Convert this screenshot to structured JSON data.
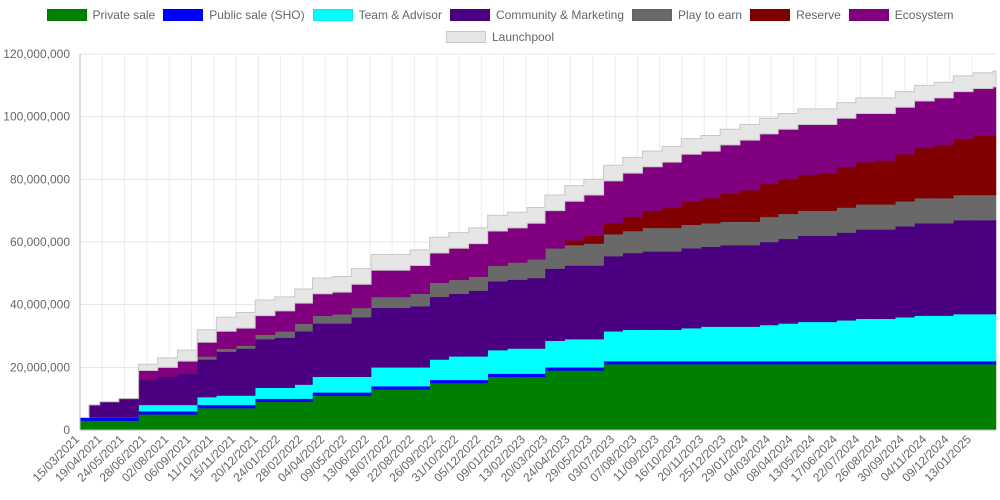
{
  "chart_data": {
    "type": "area",
    "stacked": true,
    "step": true,
    "title": "",
    "xlabel": "",
    "ylabel": "",
    "ylim": [
      0,
      120000000
    ],
    "yticks": [
      0,
      20000000,
      40000000,
      60000000,
      80000000,
      100000000,
      120000000
    ],
    "grid": true,
    "legend_position": "top",
    "x_tick_labels": [
      "15/03/2021",
      "19/04/2021",
      "24/05/2021",
      "28/06/2021",
      "02/08/2021",
      "06/09/2021",
      "11/10/2021",
      "15/11/2021",
      "20/12/2021",
      "24/01/2022",
      "28/02/2022",
      "04/04/2022",
      "09/05/2022",
      "13/06/2022",
      "18/07/2022",
      "22/08/2022",
      "26/09/2022",
      "31/10/2022",
      "05/12/2022",
      "09/01/2023",
      "13/02/2023",
      "20/03/2023",
      "24/04/2023",
      "29/05/2023",
      "03/07/2023",
      "07/08/2023",
      "11/09/2023",
      "16/10/2023",
      "20/11/2023",
      "25/12/2023",
      "29/01/2024",
      "04/03/2024",
      "08/04/2024",
      "13/05/2024",
      "17/06/2024",
      "22/07/2024",
      "26/08/2024",
      "30/09/2024",
      "04/11/2024",
      "09/12/2024",
      "13/01/2025"
    ],
    "step_dates": [
      "15/03/2021",
      "29/03/2021",
      "15/04/2021",
      "15/05/2021",
      "15/06/2021",
      "15/07/2021",
      "15/08/2021",
      "15/09/2021",
      "15/10/2021",
      "15/11/2021",
      "15/12/2021",
      "15/01/2022",
      "15/02/2022",
      "15/03/2022",
      "15/04/2022",
      "15/05/2022",
      "15/06/2022",
      "15/07/2022",
      "15/08/2022",
      "15/09/2022",
      "15/10/2022",
      "15/11/2022",
      "15/12/2022",
      "15/01/2023",
      "15/02/2023",
      "15/03/2023",
      "15/04/2023",
      "15/05/2023",
      "15/06/2023",
      "15/07/2023",
      "15/08/2023",
      "15/09/2023",
      "15/10/2023",
      "15/11/2023",
      "15/12/2023",
      "15/01/2024",
      "15/02/2024",
      "15/03/2024",
      "15/04/2024",
      "15/05/2024",
      "15/06/2024",
      "15/07/2024",
      "15/08/2024",
      "15/09/2024",
      "15/10/2024",
      "15/11/2024",
      "15/12/2024",
      "15/01/2025",
      "15/02/2025"
    ],
    "end_date": "20/02/2025",
    "series": [
      {
        "name": "Private sale",
        "color": "#008000",
        "values": [
          3000000,
          3000000,
          3000000,
          3000000,
          5000000,
          5000000,
          5000000,
          7000000,
          7000000,
          7000000,
          9000000,
          9000000,
          9000000,
          11000000,
          11000000,
          11000000,
          13000000,
          13000000,
          13000000,
          15000000,
          15000000,
          15000000,
          17000000,
          17000000,
          17000000,
          19000000,
          19000000,
          19000000,
          21000000,
          21000000,
          21000000,
          21000000,
          21000000,
          21000000,
          21000000,
          21000000,
          21000000,
          21000000,
          21000000,
          21000000,
          21000000,
          21000000,
          21000000,
          21000000,
          21000000,
          21000000,
          21000000,
          21000000,
          21000000
        ]
      },
      {
        "name": "Public sale (SHO)",
        "color": "#0000ff",
        "values": [
          1000000,
          1000000,
          1000000,
          1000000,
          1000000,
          1000000,
          1000000,
          1000000,
          1000000,
          1000000,
          1000000,
          1000000,
          1000000,
          1000000,
          1000000,
          1000000,
          1000000,
          1000000,
          1000000,
          1000000,
          1000000,
          1000000,
          1000000,
          1000000,
          1000000,
          1000000,
          1000000,
          1000000,
          1000000,
          1000000,
          1000000,
          1000000,
          1000000,
          1000000,
          1000000,
          1000000,
          1000000,
          1000000,
          1000000,
          1000000,
          1000000,
          1000000,
          1000000,
          1000000,
          1000000,
          1000000,
          1000000,
          1000000,
          1000000
        ]
      },
      {
        "name": "Team & Advisor",
        "color": "#00ffff",
        "values": [
          0,
          0,
          0,
          0,
          2000000,
          2000000,
          2000000,
          2500000,
          3000000,
          3000000,
          3500000,
          3500000,
          4500000,
          5000000,
          5000000,
          5000000,
          6000000,
          6000000,
          6000000,
          6500000,
          7500000,
          7500000,
          7500000,
          8000000,
          8000000,
          8500000,
          9000000,
          9000000,
          9500000,
          10000000,
          10000000,
          10000000,
          10500000,
          11000000,
          11000000,
          11000000,
          11500000,
          12000000,
          12500000,
          12500000,
          13000000,
          13500000,
          13500000,
          14000000,
          14500000,
          14500000,
          15000000,
          15000000,
          15000000
        ]
      },
      {
        "name": "Community & Marketing",
        "color": "#4b0082",
        "values": [
          0,
          4000000,
          5000000,
          6000000,
          8000000,
          9000000,
          10000000,
          12000000,
          14000000,
          15000000,
          15500000,
          16000000,
          17000000,
          17000000,
          17000000,
          19000000,
          19000000,
          19000000,
          19500000,
          20000000,
          20000000,
          21000000,
          22000000,
          22000000,
          22500000,
          23000000,
          23500000,
          23500000,
          24000000,
          24500000,
          25000000,
          25000000,
          25500000,
          25500000,
          26000000,
          26000000,
          26500000,
          27000000,
          27500000,
          27500000,
          28000000,
          28500000,
          28500000,
          29000000,
          29500000,
          29500000,
          30000000,
          30000000,
          30000000
        ]
      },
      {
        "name": "Play to earn",
        "color": "#696969",
        "values": [
          0,
          0,
          0,
          0,
          0,
          0,
          0,
          1000000,
          1000000,
          1000000,
          1500000,
          2000000,
          2500000,
          2500000,
          3000000,
          3000000,
          3500000,
          3500000,
          4000000,
          4500000,
          4500000,
          4500000,
          5000000,
          5500000,
          6000000,
          6500000,
          6500000,
          7000000,
          7000000,
          7000000,
          7500000,
          7500000,
          7500000,
          7500000,
          7500000,
          7500000,
          8000000,
          8000000,
          8000000,
          8000000,
          8000000,
          8000000,
          8000000,
          8000000,
          8000000,
          8000000,
          8000000,
          8000000,
          8000000
        ]
      },
      {
        "name": "Reserve",
        "color": "#800000",
        "values": [
          0,
          0,
          0,
          0,
          0,
          0,
          0,
          0,
          0,
          0,
          0,
          0,
          0,
          0,
          0,
          0,
          0,
          0,
          0,
          0,
          0,
          0,
          0,
          0,
          0,
          0,
          1500000,
          2500000,
          3500000,
          4500000,
          5500000,
          6500000,
          7500000,
          8000000,
          9000000,
          10000000,
          10500000,
          11000000,
          11500000,
          12000000,
          13000000,
          13500000,
          14000000,
          15000000,
          16000000,
          17000000,
          18000000,
          19000000,
          19000000
        ]
      },
      {
        "name": "Ecosystem",
        "color": "#800080",
        "values": [
          0,
          0,
          0,
          0,
          3000000,
          3000000,
          4000000,
          4500000,
          5500000,
          5500000,
          6000000,
          6500000,
          6500000,
          7000000,
          7000000,
          7500000,
          8500000,
          8500000,
          9000000,
          9500000,
          10000000,
          10500000,
          11000000,
          11000000,
          11500000,
          12000000,
          12500000,
          13000000,
          13500000,
          14000000,
          14000000,
          14500000,
          15000000,
          15000000,
          15500000,
          16000000,
          16000000,
          16000000,
          16000000,
          15500000,
          15500000,
          15500000,
          15000000,
          15000000,
          15000000,
          15000000,
          15000000,
          15000000,
          15500000
        ]
      },
      {
        "name": "Launchpool",
        "color": "#e6e6e6",
        "values": [
          0,
          0,
          0,
          0,
          2000000,
          3000000,
          3500000,
          4000000,
          4500000,
          5000000,
          5000000,
          4500000,
          4500000,
          5000000,
          5000000,
          5000000,
          5000000,
          5000000,
          5000000,
          5000000,
          5000000,
          5000000,
          5000000,
          5000000,
          5000000,
          5000000,
          5000000,
          5000000,
          5000000,
          5000000,
          5000000,
          5000000,
          5000000,
          5000000,
          5000000,
          5000000,
          5000000,
          5000000,
          5000000,
          5000000,
          5000000,
          5000000,
          5000000,
          5000000,
          5000000,
          5000000,
          5000000,
          5000000,
          5000000
        ]
      }
    ]
  }
}
